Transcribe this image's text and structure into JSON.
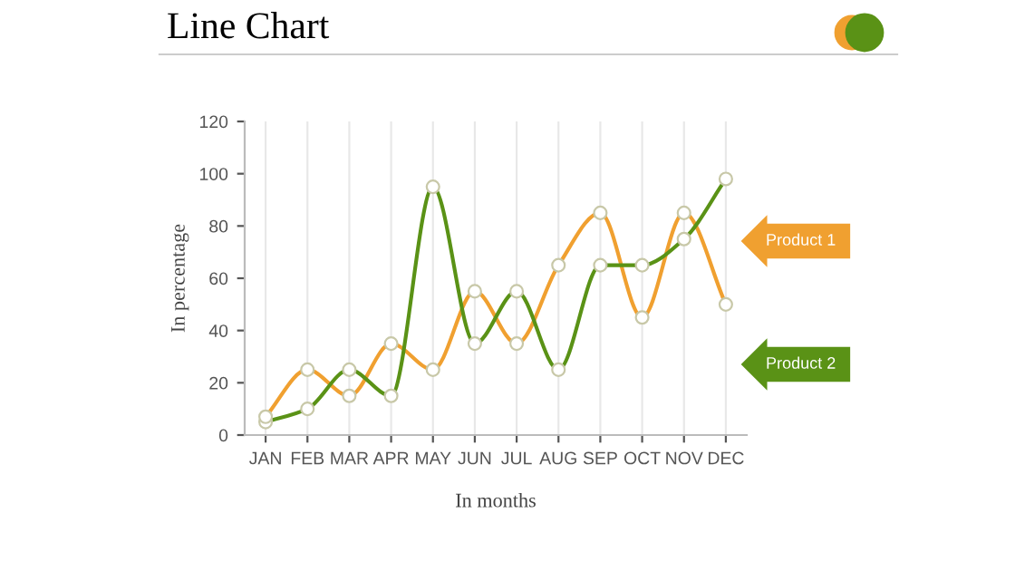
{
  "chart_data": {
    "type": "line",
    "title": "Line Chart",
    "xlabel": "In months",
    "ylabel": "In percentage",
    "categories": [
      "JAN",
      "FEB",
      "MAR",
      "APR",
      "MAY",
      "JUN",
      "JUL",
      "AUG",
      "SEP",
      "OCT",
      "NOV",
      "DEC"
    ],
    "series": [
      {
        "name": "Product 1",
        "color": "#f0a030",
        "values": [
          7,
          25,
          15,
          35,
          25,
          55,
          35,
          65,
          85,
          45,
          85,
          50
        ]
      },
      {
        "name": "Product 2",
        "color": "#5a9216",
        "values": [
          5,
          10,
          25,
          15,
          95,
          35,
          55,
          25,
          65,
          65,
          75,
          98
        ]
      }
    ],
    "ylim": [
      0,
      120
    ],
    "yticks": [
      0,
      20,
      40,
      60,
      80,
      100,
      120
    ],
    "grid": "x",
    "legend": "right",
    "marker": "circle"
  }
}
